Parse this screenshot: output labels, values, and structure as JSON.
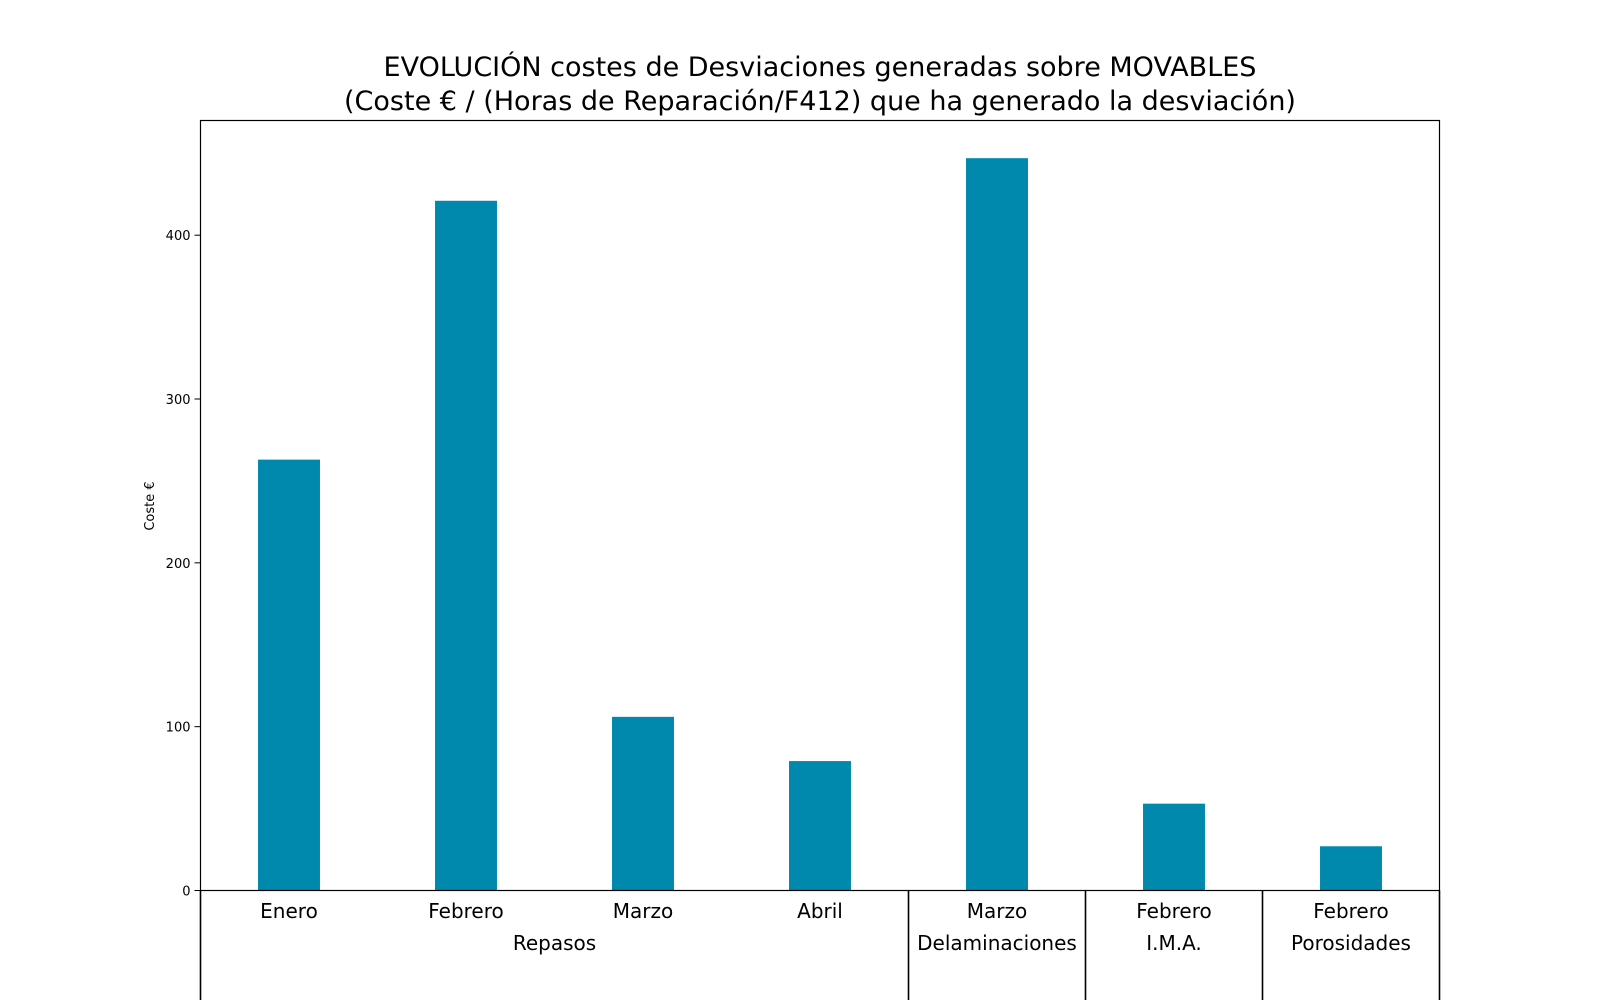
{
  "chart_data": {
    "type": "bar",
    "title": "EVOLUCIÓN costes de Desviaciones  generadas  sobre MOVABLES",
    "subtitle": "(Coste € / (Horas de Reparación/F412) que ha generado la desviación)",
    "xlabel": "",
    "ylabel": "Coste €",
    "ylim": [
      0,
      470
    ],
    "yticks": [
      0,
      100,
      200,
      300,
      400
    ],
    "grid": false,
    "bar_color": "#0088ad",
    "categories": [
      "Enero",
      "Febrero",
      "Marzo",
      "Abril",
      "Marzo",
      "Febrero",
      "Febrero"
    ],
    "values": [
      263,
      421,
      106,
      79,
      447,
      53,
      27
    ],
    "groups": [
      {
        "name": "Repasos",
        "count": 4
      },
      {
        "name": "Delaminaciones",
        "count": 1
      },
      {
        "name": "I.M.A.",
        "count": 1
      },
      {
        "name": "Porosidades",
        "count": 1
      }
    ]
  }
}
